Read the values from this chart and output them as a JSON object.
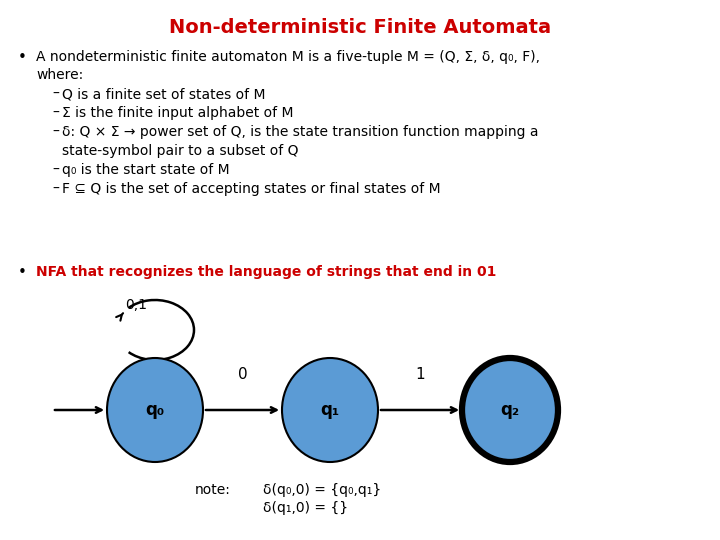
{
  "title": "Non-deterministic Finite Automata",
  "title_color": "#cc0000",
  "title_fontsize": 14,
  "bg_color": "#ffffff",
  "body_fontsize": 10,
  "bullet2_color": "#cc0000",
  "bullet2": "NFA that recognizes the language of strings that end in 01",
  "node_color": "#5b9bd5",
  "node_edge_color": "#000000",
  "node_labels": [
    "q₀",
    "q₁",
    "q₂"
  ],
  "arrow_label_0": "0",
  "arrow_label_1": "1",
  "self_loop_label": "0,1",
  "note_text": "note:",
  "note_line1": "δ(q₀,0) = {q₀,q₁}",
  "note_line2": "δ(q₁,0) = {}"
}
